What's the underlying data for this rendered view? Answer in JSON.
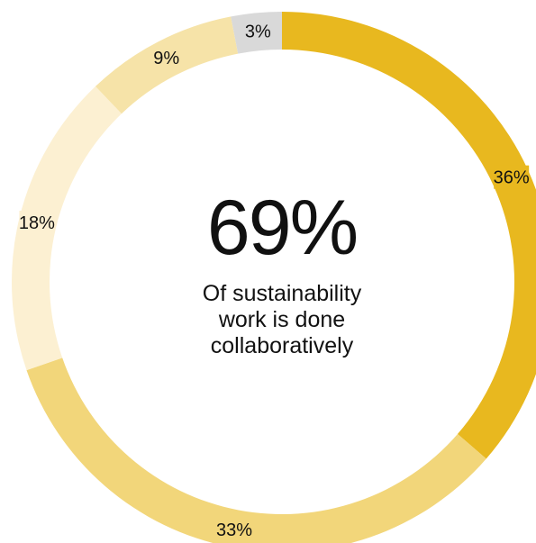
{
  "chart_data": {
    "type": "pie",
    "donut": true,
    "start": "top",
    "direction": "clockwise",
    "slices": [
      {
        "label": "36%",
        "value": 36,
        "color": "#e8b81f",
        "label_bg": "#e8b81f"
      },
      {
        "label": "33%",
        "value": 33,
        "color": "#f2d67a",
        "label_bg": ""
      },
      {
        "label": "18%",
        "value": 18,
        "color": "#fcf0d2",
        "label_bg": "#fcf0d2"
      },
      {
        "label": "9%",
        "value": 9,
        "color": "#f6e3a8",
        "label_bg": ""
      },
      {
        "label": "3%",
        "value": 3,
        "color": "#d9d9d9",
        "label_bg": ""
      }
    ],
    "center": {
      "value": "69%",
      "caption_lines": [
        "Of sustainability",
        "work is done",
        "collaboratively"
      ]
    }
  }
}
